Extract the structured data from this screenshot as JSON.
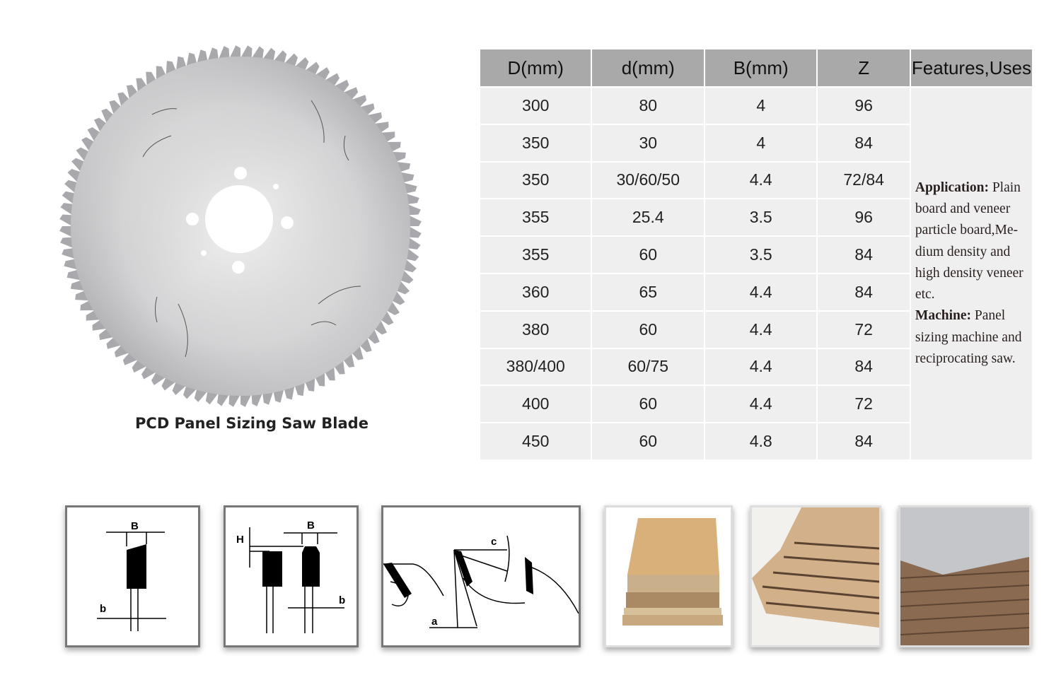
{
  "product": {
    "caption": "PCD Panel Sizing Saw Blade"
  },
  "table": {
    "headers": [
      "D(mm)",
      "d(mm)",
      "B(mm)",
      "Z",
      "Features,Uses"
    ],
    "rows": [
      [
        "300",
        "80",
        "4",
        "96"
      ],
      [
        "350",
        "30",
        "4",
        "84"
      ],
      [
        "350",
        "30/60/50",
        "4.4",
        "72/84"
      ],
      [
        "355",
        "25.4",
        "3.5",
        "96"
      ],
      [
        "355",
        "60",
        "3.5",
        "84"
      ],
      [
        "360",
        "65",
        "4.4",
        "84"
      ],
      [
        "380",
        "60",
        "4.4",
        "72"
      ],
      [
        "380/400",
        "60/75",
        "4.4",
        "84"
      ],
      [
        "400",
        "60",
        "4.4",
        "72"
      ],
      [
        "450",
        "60",
        "4.8",
        "84"
      ]
    ],
    "features": {
      "application_label": "Application:",
      "application_text": " Plain board and veneer particle board,Me-dium density and high density veneer etc.",
      "machine_label": "Machine:",
      "machine_text": " Panel sizing machine and reciprocating saw."
    }
  },
  "diagrams": {
    "d1": {
      "B": "B",
      "b": "b"
    },
    "d2": {
      "H": "H",
      "B": "B",
      "b": "b"
    },
    "d3": {
      "c": "c",
      "a": "a"
    }
  },
  "colors": {
    "header_bg": "#a9a9a9",
    "cell_bg": "#efefef"
  }
}
